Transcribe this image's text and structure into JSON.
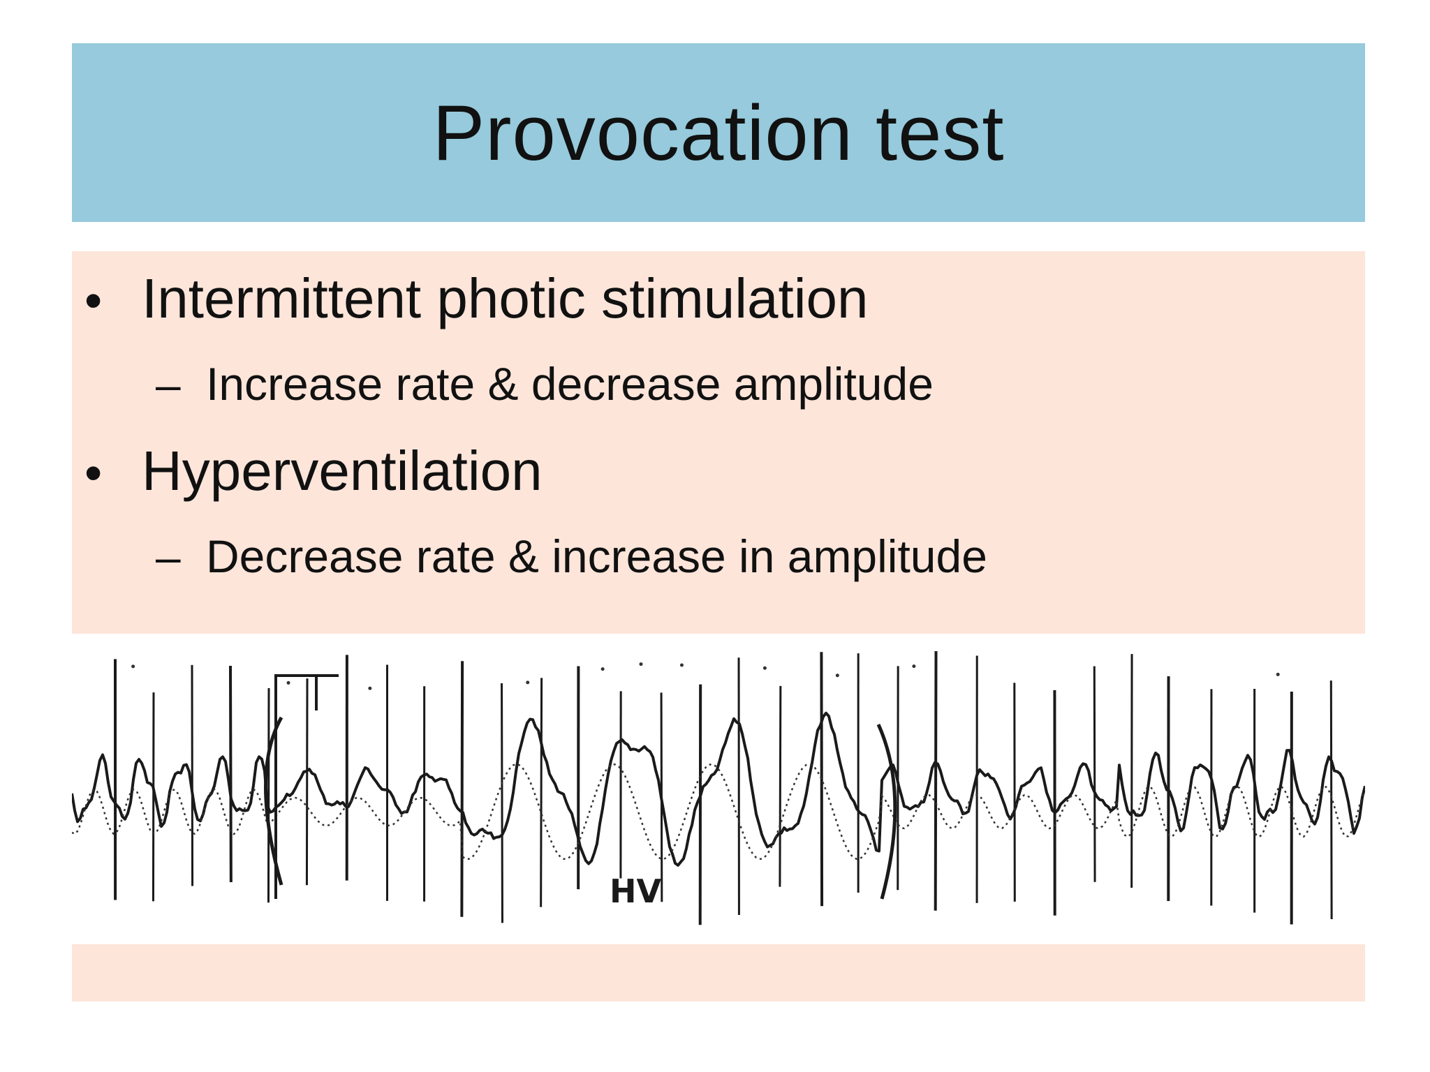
{
  "slide": {
    "title": "Provocation test",
    "colors": {
      "title_background": "#96cadc",
      "content_background": "#fde5da",
      "text": "#111111"
    },
    "bullets": [
      {
        "text": "Intermittent photic stimulation",
        "sub": "Increase rate & decrease amplitude"
      },
      {
        "text": "Hyperventilation",
        "sub": "Decrease rate & increase in amplitude"
      }
    ],
    "eeg_figure": {
      "annotation": "HV"
    }
  }
}
